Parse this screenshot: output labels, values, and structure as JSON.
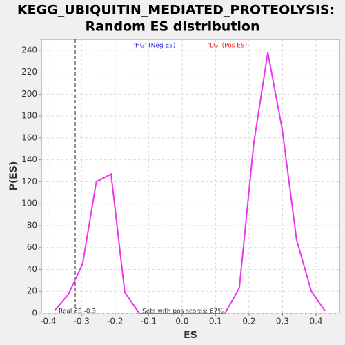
{
  "chart_data": {
    "type": "line",
    "title": "KEGG_UBIQUITIN_MEDIATED_PROTEOLYSIS:",
    "subtitle": "Random ES distribution",
    "x_label": "ES",
    "y_label": "P(ES)",
    "x": [
      -0.379,
      -0.34,
      -0.297,
      -0.256,
      -0.212,
      -0.171,
      -0.128,
      0.128,
      0.171,
      0.214,
      0.256,
      0.299,
      0.342,
      0.386,
      0.427
    ],
    "series": [
      {
        "name": "P(ES)",
        "color": "#ee33ee",
        "values": [
          3,
          17,
          45,
          120,
          127,
          19,
          0,
          0,
          23,
          155,
          238,
          168,
          67,
          20,
          2
        ]
      }
    ],
    "legend": [
      {
        "text": "'HG' (Neg ES)",
        "color": "#2222ee"
      },
      {
        "text": "'LG' (Pos ES)",
        "color": "#ee2222"
      }
    ],
    "real_es": -0.32,
    "real_es_label": "Real ES -0.3",
    "pos_scores_label": "Sets with pos scores: 67%",
    "xlim": [
      -0.42,
      0.47
    ],
    "ylim": [
      0,
      250
    ],
    "xticks": [
      -0.4,
      -0.3,
      -0.2,
      -0.1,
      {
        "value": 0,
        "label": "0.0"
      },
      0.1,
      0.2,
      0.3,
      0.4
    ],
    "yticks": [
      0,
      20,
      40,
      60,
      80,
      100,
      120,
      140,
      160,
      180,
      200,
      220,
      240
    ],
    "grid": true
  }
}
